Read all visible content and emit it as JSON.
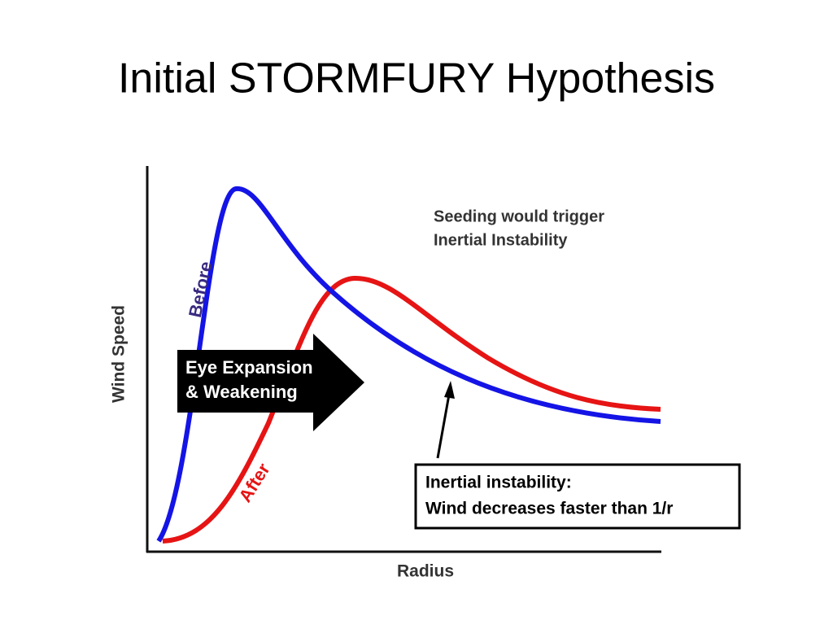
{
  "title": "Initial STORMFURY Hypothesis",
  "diagram": {
    "y_axis_label": "Wind Speed",
    "x_axis_label": "Radius",
    "curves": [
      {
        "label": "Before",
        "color": "#1414e6"
      },
      {
        "label": "After",
        "color": "#e61414"
      }
    ],
    "annotation": [
      "Seeding would trigger",
      "Inertial Instability"
    ],
    "arrow_label": [
      "Eye Expansion",
      "& Weakening"
    ],
    "callout": [
      "Inertial instability:",
      "Wind decreases faster than 1/r"
    ]
  }
}
